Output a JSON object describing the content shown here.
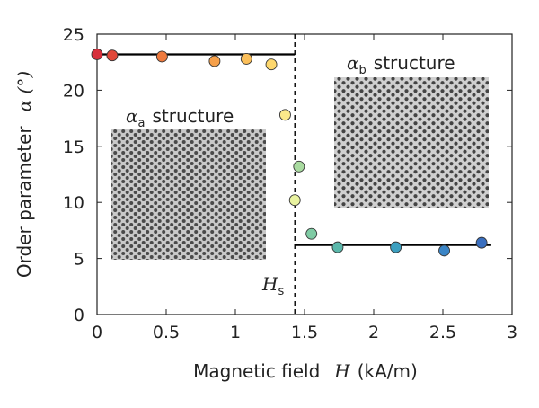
{
  "chart_data": {
    "type": "scatter",
    "xlabel_text": "Magnetic field",
    "xlabel_symbol": "H",
    "xlabel_unit": "(kA/m)",
    "ylabel_text": "Order parameter",
    "ylabel_symbol": "α (°)",
    "xlim": [
      0,
      3
    ],
    "ylim": [
      0,
      25
    ],
    "x_ticks": [
      0,
      0.5,
      1,
      1.5,
      2,
      2.5,
      3
    ],
    "x_tick_labels": [
      "0",
      "0.5",
      "1",
      "1.5",
      "2",
      "2.5",
      "3"
    ],
    "y_ticks": [
      0,
      5,
      10,
      15,
      20,
      25
    ],
    "y_tick_labels": [
      "0",
      "5",
      "10",
      "15",
      "20",
      "25"
    ],
    "points": [
      {
        "x": 0.0,
        "y": 23.2,
        "color": "#d7303c"
      },
      {
        "x": 0.11,
        "y": 23.1,
        "color": "#e0483a"
      },
      {
        "x": 0.47,
        "y": 23.0,
        "color": "#ee7a3e"
      },
      {
        "x": 0.85,
        "y": 22.6,
        "color": "#f6a04a"
      },
      {
        "x": 1.08,
        "y": 22.8,
        "color": "#fbbf5a"
      },
      {
        "x": 1.26,
        "y": 22.3,
        "color": "#fdd76d"
      },
      {
        "x": 1.36,
        "y": 17.8,
        "color": "#fbe98a"
      },
      {
        "x": 1.43,
        "y": 10.2,
        "color": "#e9f3a0"
      },
      {
        "x": 1.46,
        "y": 13.2,
        "color": "#a9dba0"
      },
      {
        "x": 1.55,
        "y": 7.2,
        "color": "#7fcba4"
      },
      {
        "x": 1.74,
        "y": 6.0,
        "color": "#5bb8ab"
      },
      {
        "x": 2.16,
        "y": 6.0,
        "color": "#3c9fbf"
      },
      {
        "x": 2.51,
        "y": 5.7,
        "color": "#3b85c6"
      },
      {
        "x": 2.78,
        "y": 6.4,
        "color": "#3a6fbf"
      }
    ],
    "plateau_lines": [
      {
        "x0": 0.0,
        "x1": 1.43,
        "y": 23.2
      },
      {
        "x0": 1.43,
        "x1": 2.85,
        "y": 6.2
      }
    ],
    "threshold": {
      "x": 1.43,
      "label": "H",
      "label_sub": "s"
    },
    "annotations": [
      {
        "label": "α",
        "label_sub": "a",
        "text": "structure"
      },
      {
        "label": "α",
        "label_sub": "b",
        "text": "structure"
      }
    ],
    "grid": false
  }
}
